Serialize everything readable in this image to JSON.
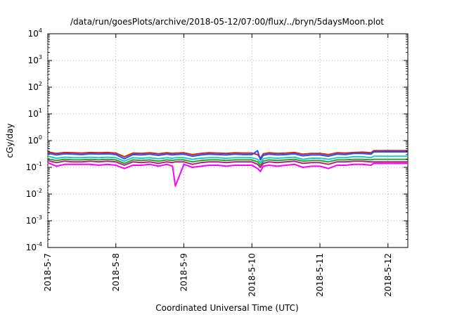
{
  "chart_data": {
    "type": "line",
    "title": "/data/run/goesPlots/archive/2018-05-12/07:00/flux/../bryn/5daysMoon.plot",
    "xlabel": "Coordinated Universal Time (UTC)",
    "ylabel": "cGy/day",
    "yscale": "log",
    "ylim": [
      0.0001,
      10000
    ],
    "xlim": [
      "2018-05-07 00:00",
      "2018-05-12 07:00"
    ],
    "grid": true,
    "x_ticks": [
      "2018-5-7",
      "2018-5-8",
      "2018-5-9",
      "2018-5-10",
      "2018-5-11",
      "2018-5-12"
    ],
    "y_ticks": [
      {
        "base": "10",
        "exp": "-4",
        "value": 0.0001
      },
      {
        "base": "10",
        "exp": "-3",
        "value": 0.001
      },
      {
        "base": "10",
        "exp": "-2",
        "value": 0.01
      },
      {
        "base": "10",
        "exp": "-1",
        "value": 0.1
      },
      {
        "base": "10",
        "exp": "0",
        "value": 1
      },
      {
        "base": "10",
        "exp": "1",
        "value": 10
      },
      {
        "base": "10",
        "exp": "2",
        "value": 100
      },
      {
        "base": "10",
        "exp": "3",
        "value": 1000
      },
      {
        "base": "10",
        "exp": "4",
        "value": 10000
      }
    ],
    "x": [
      "2018-05-07 00:00",
      "2018-05-07 03:00",
      "2018-05-07 06:00",
      "2018-05-07 09:00",
      "2018-05-07 12:00",
      "2018-05-07 15:00",
      "2018-05-07 18:00",
      "2018-05-07 21:00",
      "2018-05-08 00:00",
      "2018-05-08 03:00",
      "2018-05-08 06:00",
      "2018-05-08 09:00",
      "2018-05-08 12:00",
      "2018-05-08 15:00",
      "2018-05-08 18:00",
      "2018-05-08 20:00",
      "2018-05-08 21:00",
      "2018-05-09 00:00",
      "2018-05-09 03:00",
      "2018-05-09 06:00",
      "2018-05-09 09:00",
      "2018-05-09 12:00",
      "2018-05-09 15:00",
      "2018-05-09 18:00",
      "2018-05-09 21:00",
      "2018-05-10 00:00",
      "2018-05-10 02:00",
      "2018-05-10 03:00",
      "2018-05-10 04:00",
      "2018-05-10 06:00",
      "2018-05-10 09:00",
      "2018-05-10 12:00",
      "2018-05-10 15:00",
      "2018-05-10 18:00",
      "2018-05-10 21:00",
      "2018-05-11 00:00",
      "2018-05-11 03:00",
      "2018-05-11 06:00",
      "2018-05-11 09:00",
      "2018-05-11 12:00",
      "2018-05-11 15:00",
      "2018-05-11 18:00",
      "2018-05-11 19:00",
      "2018-05-12 00:00",
      "2018-05-12 07:00"
    ],
    "series": [
      {
        "color": "#d62020",
        "values": [
          0.38,
          0.33,
          0.36,
          0.35,
          0.34,
          0.36,
          0.35,
          0.36,
          0.34,
          0.25,
          0.34,
          0.33,
          0.35,
          0.32,
          0.35,
          0.33,
          0.34,
          0.35,
          0.3,
          0.33,
          0.35,
          0.34,
          0.33,
          0.35,
          0.34,
          0.34,
          0.3,
          0.22,
          0.32,
          0.35,
          0.33,
          0.34,
          0.36,
          0.31,
          0.33,
          0.33,
          0.3,
          0.35,
          0.34,
          0.36,
          0.37,
          0.35,
          0.42,
          0.42,
          0.42
        ]
      },
      {
        "color": "#2255ee",
        "values": [
          0.34,
          0.29,
          0.32,
          0.31,
          0.3,
          0.32,
          0.31,
          0.32,
          0.3,
          0.21,
          0.3,
          0.29,
          0.31,
          0.28,
          0.31,
          0.29,
          0.3,
          0.31,
          0.26,
          0.29,
          0.31,
          0.3,
          0.29,
          0.31,
          0.3,
          0.3,
          0.42,
          0.19,
          0.28,
          0.31,
          0.29,
          0.3,
          0.32,
          0.27,
          0.29,
          0.29,
          0.26,
          0.31,
          0.3,
          0.33,
          0.33,
          0.31,
          0.38,
          0.38,
          0.38
        ]
      },
      {
        "color": "#20c8c8",
        "values": [
          0.26,
          0.22,
          0.24,
          0.23,
          0.23,
          0.24,
          0.23,
          0.24,
          0.23,
          0.17,
          0.23,
          0.22,
          0.23,
          0.21,
          0.23,
          0.22,
          0.23,
          0.23,
          0.2,
          0.22,
          0.23,
          0.23,
          0.22,
          0.23,
          0.23,
          0.23,
          0.2,
          0.15,
          0.21,
          0.23,
          0.22,
          0.23,
          0.24,
          0.2,
          0.22,
          0.22,
          0.2,
          0.23,
          0.23,
          0.25,
          0.25,
          0.23,
          0.26,
          0.26,
          0.26
        ]
      },
      {
        "color": "#30a030",
        "values": [
          0.21,
          0.18,
          0.2,
          0.19,
          0.19,
          0.2,
          0.19,
          0.2,
          0.19,
          0.14,
          0.19,
          0.18,
          0.19,
          0.17,
          0.19,
          0.18,
          0.19,
          0.19,
          0.16,
          0.18,
          0.19,
          0.19,
          0.18,
          0.19,
          0.19,
          0.19,
          0.16,
          0.12,
          0.17,
          0.19,
          0.18,
          0.19,
          0.2,
          0.17,
          0.18,
          0.18,
          0.16,
          0.19,
          0.19,
          0.2,
          0.2,
          0.19,
          0.2,
          0.2,
          0.2
        ]
      },
      {
        "color": "#b0207a",
        "values": [
          0.18,
          0.15,
          0.17,
          0.16,
          0.16,
          0.17,
          0.16,
          0.17,
          0.16,
          0.12,
          0.16,
          0.15,
          0.16,
          0.14,
          0.16,
          0.15,
          0.16,
          0.16,
          0.13,
          0.15,
          0.16,
          0.16,
          0.15,
          0.16,
          0.16,
          0.16,
          0.13,
          0.1,
          0.14,
          0.16,
          0.15,
          0.16,
          0.17,
          0.14,
          0.15,
          0.15,
          0.13,
          0.16,
          0.16,
          0.17,
          0.17,
          0.16,
          0.16,
          0.16,
          0.16
        ]
      },
      {
        "color": "#ff00ff",
        "values": [
          0.15,
          0.11,
          0.13,
          0.13,
          0.13,
          0.13,
          0.12,
          0.13,
          0.12,
          0.09,
          0.12,
          0.12,
          0.13,
          0.11,
          0.13,
          0.11,
          0.02,
          0.13,
          0.1,
          0.11,
          0.12,
          0.12,
          0.11,
          0.12,
          0.12,
          0.12,
          0.09,
          0.07,
          0.11,
          0.12,
          0.11,
          0.12,
          0.13,
          0.1,
          0.11,
          0.11,
          0.09,
          0.12,
          0.12,
          0.13,
          0.13,
          0.12,
          0.14,
          0.14,
          0.14
        ]
      }
    ]
  }
}
